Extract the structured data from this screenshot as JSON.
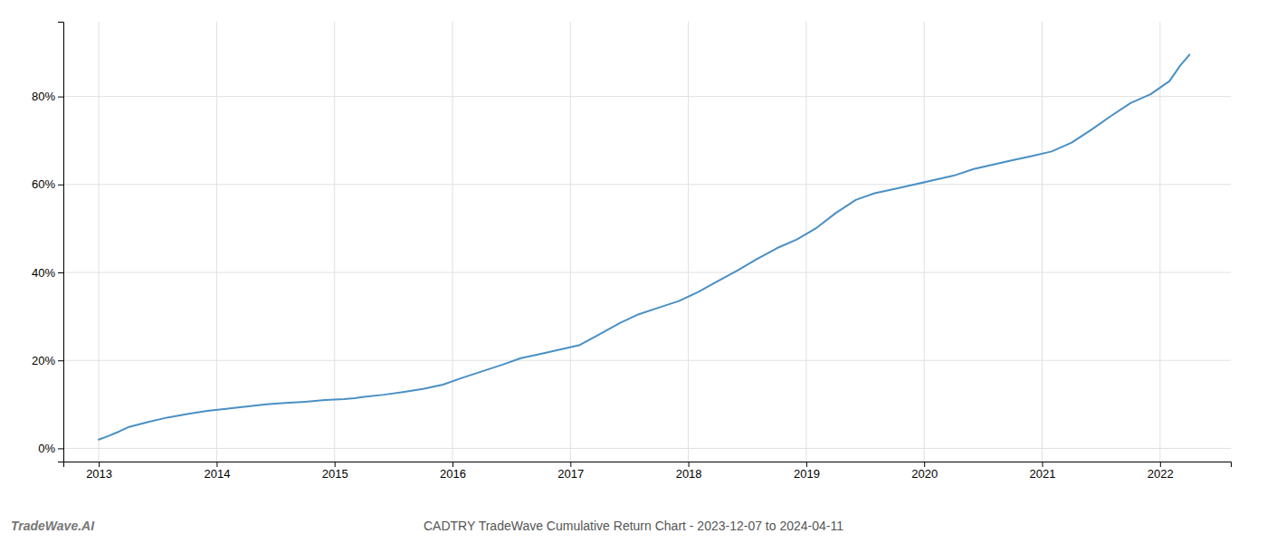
{
  "chart_data": {
    "type": "line",
    "title": "CADTRY TradeWave Cumulative Return Chart - 2023-12-07 to 2024-04-11",
    "annotations": [
      "TradeWave.AI"
    ],
    "color": "#4a90c4",
    "grid": true,
    "xlim": [
      2012.7,
      2022.6
    ],
    "xticks": [
      2013,
      2014,
      2015,
      2016,
      2017,
      2018,
      2019,
      2020,
      2021,
      2022
    ],
    "ylim": [
      -3,
      97
    ],
    "yticks": [
      {
        "value": 0,
        "label": "0%"
      },
      {
        "value": 20,
        "label": "20%"
      },
      {
        "value": 40,
        "label": "40%"
      },
      {
        "value": 60,
        "label": "60%"
      },
      {
        "value": 80,
        "label": "80%"
      }
    ],
    "x": [
      2013.0,
      2013.08,
      2013.17,
      2013.25,
      2013.42,
      2013.58,
      2013.75,
      2013.92,
      2014.08,
      2014.25,
      2014.42,
      2014.58,
      2014.75,
      2014.92,
      2015.08,
      2015.17,
      2015.25,
      2015.42,
      2015.58,
      2015.75,
      2015.92,
      2016.08,
      2016.25,
      2016.42,
      2016.58,
      2016.75,
      2016.92,
      2017.08,
      2017.25,
      2017.42,
      2017.58,
      2017.75,
      2017.92,
      2018.08,
      2018.25,
      2018.42,
      2018.58,
      2018.75,
      2018.92,
      2019.08,
      2019.25,
      2019.42,
      2019.58,
      2019.75,
      2019.92,
      2020.08,
      2020.25,
      2020.42,
      2020.58,
      2020.75,
      2020.92,
      2021.08,
      2021.25,
      2021.42,
      2021.58,
      2021.75,
      2021.92,
      2022.08,
      2022.17,
      2022.25
    ],
    "values": [
      2.0,
      2.8,
      3.8,
      4.8,
      6.0,
      7.0,
      7.8,
      8.5,
      9.0,
      9.5,
      10.0,
      10.3,
      10.6,
      11.0,
      11.2,
      11.4,
      11.7,
      12.2,
      12.8,
      13.5,
      14.5,
      16.0,
      17.5,
      19.0,
      20.5,
      21.5,
      22.5,
      23.5,
      26.0,
      28.5,
      30.5,
      32.0,
      33.5,
      35.5,
      38.0,
      40.5,
      43.0,
      45.5,
      47.5,
      50.0,
      53.5,
      56.5,
      58.0,
      59.0,
      60.0,
      61.0,
      62.0,
      63.5,
      64.5,
      65.5,
      66.5,
      67.5,
      69.5,
      72.5,
      75.5,
      78.5,
      80.5,
      83.5,
      87.0,
      89.5
    ]
  }
}
